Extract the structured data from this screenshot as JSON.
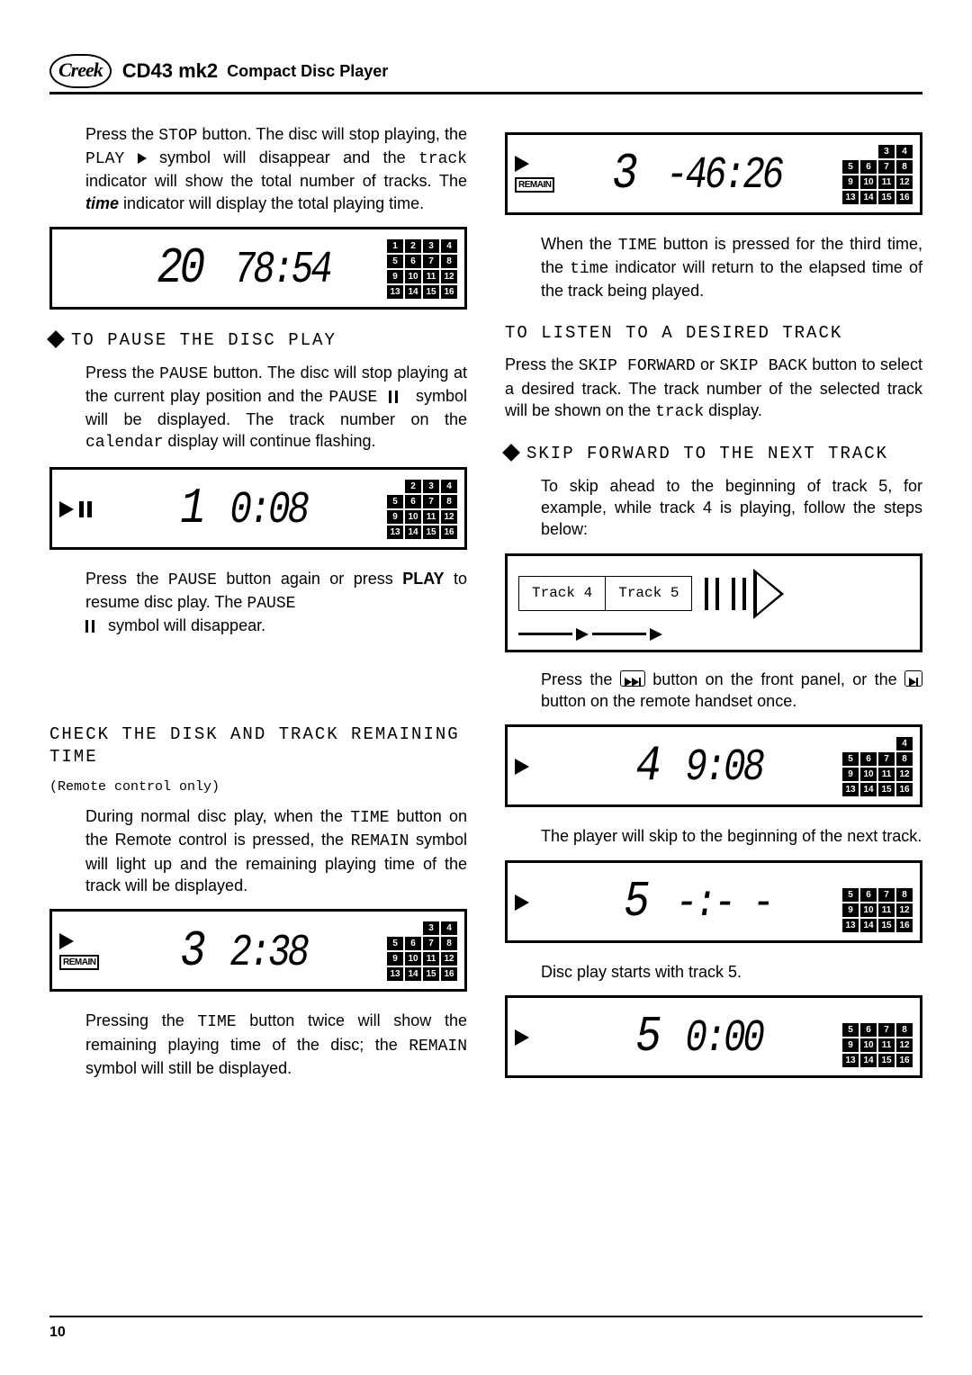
{
  "header": {
    "logo": "Creek",
    "model": "CD43 mk2",
    "subtitle": "Compact Disc Player"
  },
  "left": {
    "p1a": "Press the ",
    "p1_stop": "STOP",
    "p1b": " button. The disc will stop playing, the ",
    "p1_play": "PLAY",
    "p1c": " symbol will disappear and the ",
    "p1_track": "track",
    "p1d": " indicator will show the total number of tracks. The ",
    "p1_time": "time",
    "p1e": " indicator will display the total playing time.",
    "lcd1": {
      "track": "20",
      "time": "78:54",
      "gridStart": 1,
      "gridMissing": []
    },
    "h_pause": "TO PAUSE THE DISC PLAY",
    "p2a": "Press the ",
    "p2_pause": "PAUSE",
    "p2b": " button. The disc will stop playing at the current play position and the ",
    "p2_pause2": "PAUSE",
    "p2c": " symbol will be displayed. The track number on the ",
    "p2_cal": "calendar",
    "p2d": " display will continue flashing.",
    "lcd2": {
      "track": "1",
      "time": "0:08",
      "gridMissing": [
        1
      ]
    },
    "p3a": "Press the ",
    "p3_pause": "PAUSE",
    "p3b": " button again or press ",
    "p3_play": "PLAY",
    "p3c": " to resume disc play. The ",
    "p3_pause2": "PAUSE",
    "p3d": " symbol will disappear.",
    "h_check": "CHECK THE DISK AND TRACK REMAINING TIME",
    "sub_check": "(Remote control only)",
    "p4a": "During normal disc play, when the ",
    "p4_time": "TIME",
    "p4b": " button on the Remote control is pressed, the ",
    "p4_remain": "REMAIN",
    "p4c": " symbol will light up and the remaining playing time of the track will be displayed.",
    "lcd3": {
      "track": "3",
      "time": "2:38",
      "gridMissing": [
        1,
        2
      ]
    },
    "p5a": "Pressing the ",
    "p5_time": "TIME",
    "p5b": " button twice will show the remaining playing time of the disc; the ",
    "p5_remain": "REMAIN",
    "p5c": " symbol will still be displayed."
  },
  "right": {
    "lcd4": {
      "track": "3",
      "time": "-46:26",
      "gridMissing": [
        1,
        2
      ]
    },
    "p6a": "When the ",
    "p6_time": "TIME",
    "p6b": " button is pressed for the third time, the ",
    "p6_time2": "time",
    "p6c": " indicator will return to the elapsed time of the track being played.",
    "h_listen": "TO LISTEN TO A DESIRED TRACK",
    "p7a": "Press the ",
    "p7_sf": "SKIP FORWARD",
    "p7b": " or ",
    "p7_sb": "SKIP BACK",
    "p7c": " button to select a desired track. The track number of the selected track will be shown on the ",
    "p7_track": "track",
    "p7d": " display.",
    "h_skip": "SKIP FORWARD TO THE NEXT TRACK",
    "p8": "To skip ahead to the beginning of track 5, for example, while track 4 is playing, follow the steps below:",
    "diag": {
      "t4": "Track 4",
      "t5": "Track 5"
    },
    "p9a": "Press the ",
    "p9b": " button on the front panel, or the ",
    "p9c": " button on the remote handset once.",
    "lcd5": {
      "track": "4",
      "time": "9:08",
      "gridMissing": [
        1,
        2,
        3
      ]
    },
    "p10": "The player will skip to the beginning of the next track.",
    "lcd6": {
      "track": "5",
      "time": "-:- -",
      "gridMissing": [
        1,
        2,
        3,
        4
      ]
    },
    "p11": "Disc play starts with track 5.",
    "lcd7": {
      "track": "5",
      "time": "0:00",
      "gridMissing": [
        1,
        2,
        3,
        4
      ]
    }
  },
  "footer": {
    "page": "10"
  },
  "gridNumbers": [
    1,
    2,
    3,
    4,
    5,
    6,
    7,
    8,
    9,
    10,
    11,
    12,
    13,
    14,
    15,
    16
  ]
}
